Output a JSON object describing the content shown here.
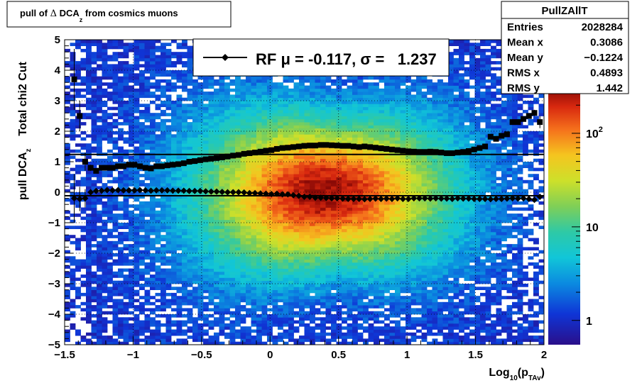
{
  "title": {
    "prefix": "pull of ",
    "delta": "Δ",
    "mid": " DCA",
    "sub": "z",
    "suffix": " from cosmics muons"
  },
  "axis_labels": {
    "x": {
      "pre": "Log",
      "sub1": "10",
      "mid": "(p",
      "sub2": "TAv",
      "post": ")"
    },
    "y": {
      "pre": "pull DCA",
      "sub": "z",
      "post": "    Total chi2 Cut"
    }
  },
  "stats_box": {
    "title": "PullZAllT",
    "rows": [
      {
        "label": "Entries",
        "value": "2028284"
      },
      {
        "label": "Mean x",
        "value": "0.3086"
      },
      {
        "label": "Mean y",
        "value": "−0.1224"
      },
      {
        "label": "RMS x",
        "value": "0.4893"
      },
      {
        "label": "RMS y",
        "value": "1.442"
      }
    ]
  },
  "legend": {
    "text": "RF μ = -0.117, σ =   1.237"
  },
  "colorbar": {
    "labels": [
      {
        "text": "1",
        "value": 1
      },
      {
        "text": "10",
        "value": 10
      },
      {
        "text": "10",
        "sup": "2",
        "value": 100
      }
    ],
    "min": 0.55,
    "max": 300
  },
  "chart_data": {
    "type": "heatmap",
    "xlim": [
      -1.5,
      2
    ],
    "ylim": [
      -5,
      5
    ],
    "x_ticks": [
      {
        "value": -1.5,
        "label": "−1.5"
      },
      {
        "value": -1,
        "label": "−1"
      },
      {
        "value": -0.5,
        "label": "−0.5"
      },
      {
        "value": 0,
        "label": "0"
      },
      {
        "value": 0.5,
        "label": "0.5"
      },
      {
        "value": 1,
        "label": "1"
      },
      {
        "value": 1.5,
        "label": "1.5"
      },
      {
        "value": 2,
        "label": "2"
      }
    ],
    "y_ticks": [
      {
        "value": 5,
        "label": "5"
      },
      {
        "value": 4,
        "label": "4"
      },
      {
        "value": 3,
        "label": "3"
      },
      {
        "value": 2,
        "label": "2"
      },
      {
        "value": 1,
        "label": "1"
      },
      {
        "value": 0,
        "label": "0"
      },
      {
        "value": -1,
        "label": "−1"
      },
      {
        "value": -2,
        "label": "−2"
      },
      {
        "value": -3,
        "label": "−3"
      },
      {
        "value": -4,
        "label": "−4"
      },
      {
        "value": -5,
        "label": "−5"
      }
    ],
    "grid": true,
    "z_scale": "log",
    "fit_lines": [
      {
        "y": 1.237,
        "x": [
          -1.5,
          2
        ]
      },
      {
        "y": -0.117,
        "x": [
          -1.5,
          2
        ]
      }
    ],
    "mean_series": {
      "marker": "diamond",
      "x": [
        -1.43,
        -1.39,
        -1.35,
        -1.31,
        -1.27,
        -1.23,
        -1.19,
        -1.15,
        -1.11,
        -1.07,
        -1.03,
        -0.99,
        -0.95,
        -0.91,
        -0.87,
        -0.83,
        -0.79,
        -0.75,
        -0.71,
        -0.67,
        -0.63,
        -0.59,
        -0.55,
        -0.51,
        -0.47,
        -0.43,
        -0.39,
        -0.35,
        -0.31,
        -0.27,
        -0.23,
        -0.19,
        -0.15,
        -0.11,
        -0.07,
        -0.03,
        0.01,
        0.05,
        0.09,
        0.13,
        0.17,
        0.21,
        0.25,
        0.29,
        0.33,
        0.37,
        0.41,
        0.45,
        0.49,
        0.53,
        0.57,
        0.61,
        0.65,
        0.69,
        0.73,
        0.77,
        0.81,
        0.85,
        0.89,
        0.93,
        0.97,
        1.01,
        1.05,
        1.09,
        1.13,
        1.17,
        1.21,
        1.25,
        1.29,
        1.33,
        1.37,
        1.41,
        1.45,
        1.49,
        1.53,
        1.57,
        1.61,
        1.65,
        1.69,
        1.73,
        1.77,
        1.81,
        1.85,
        1.89,
        1.93,
        1.97
      ],
      "y": [
        -0.2,
        -0.22,
        -0.2,
        0.0,
        0.04,
        0.05,
        0.07,
        0.06,
        0.07,
        0.06,
        0.06,
        0.06,
        0.07,
        0.06,
        0.05,
        0.06,
        0.06,
        0.06,
        0.05,
        0.05,
        0.05,
        0.04,
        0.04,
        0.04,
        0.03,
        0.02,
        0.02,
        0.01,
        0.0,
        0.0,
        0.0,
        -0.01,
        -0.03,
        -0.03,
        -0.04,
        -0.05,
        -0.06,
        -0.05,
        -0.07,
        -0.07,
        -0.1,
        -0.12,
        -0.15,
        -0.15,
        -0.18,
        -0.18,
        -0.19,
        -0.2,
        -0.2,
        -0.21,
        -0.22,
        -0.22,
        -0.22,
        -0.23,
        -0.22,
        -0.21,
        -0.22,
        -0.21,
        -0.22,
        -0.2,
        -0.22,
        -0.22,
        -0.2,
        -0.2,
        -0.2,
        -0.21,
        -0.2,
        -0.21,
        -0.21,
        -0.22,
        -0.2,
        -0.21,
        -0.21,
        -0.22,
        -0.22,
        -0.22,
        -0.23,
        -0.22,
        -0.22,
        -0.21,
        -0.2,
        -0.21,
        -0.2,
        -0.22,
        -0.25,
        -0.15
      ],
      "err": [
        0.8,
        0.4,
        0.3,
        0.1,
        0.05,
        0.04,
        0.04,
        0.03,
        0.03,
        0.03,
        0.03,
        0.03,
        0.03,
        0.03,
        0.03,
        0.03,
        0.03,
        0.03,
        0.03,
        0.03,
        0.03,
        0.03,
        0.03,
        0.03,
        0.03,
        0.03,
        0.03,
        0.03,
        0.03,
        0.03,
        0.03,
        0.03,
        0.03,
        0.03,
        0.03,
        0.03,
        0.03,
        0.03,
        0.03,
        0.03,
        0.03,
        0.03,
        0.03,
        0.03,
        0.03,
        0.03,
        0.03,
        0.03,
        0.03,
        0.03,
        0.03,
        0.03,
        0.03,
        0.03,
        0.03,
        0.03,
        0.03,
        0.03,
        0.03,
        0.03,
        0.03,
        0.03,
        0.03,
        0.03,
        0.03,
        0.03,
        0.03,
        0.03,
        0.03,
        0.03,
        0.03,
        0.03,
        0.03,
        0.03,
        0.03,
        0.03,
        0.03,
        0.03,
        0.03,
        0.03,
        0.03,
        0.03,
        0.04,
        0.05,
        0.06,
        0.1
      ]
    },
    "rms_series": {
      "marker": "square",
      "x": [
        -1.43,
        -1.39,
        -1.35,
        -1.31,
        -1.27,
        -1.23,
        -1.19,
        -1.15,
        -1.11,
        -1.07,
        -1.03,
        -0.99,
        -0.95,
        -0.91,
        -0.87,
        -0.83,
        -0.79,
        -0.75,
        -0.71,
        -0.67,
        -0.63,
        -0.59,
        -0.55,
        -0.51,
        -0.47,
        -0.43,
        -0.39,
        -0.35,
        -0.31,
        -0.27,
        -0.23,
        -0.19,
        -0.15,
        -0.11,
        -0.07,
        -0.03,
        0.01,
        0.05,
        0.09,
        0.13,
        0.17,
        0.21,
        0.25,
        0.29,
        0.33,
        0.37,
        0.41,
        0.45,
        0.49,
        0.53,
        0.57,
        0.61,
        0.65,
        0.69,
        0.73,
        0.77,
        0.81,
        0.85,
        0.89,
        0.93,
        0.97,
        1.01,
        1.05,
        1.09,
        1.13,
        1.17,
        1.21,
        1.25,
        1.29,
        1.33,
        1.37,
        1.41,
        1.45,
        1.49,
        1.53,
        1.57,
        1.61,
        1.65,
        1.69,
        1.73,
        1.77,
        1.81,
        1.85,
        1.89,
        1.93,
        1.97
      ],
      "y": [
        3.7,
        2.5,
        1.0,
        0.8,
        0.7,
        0.8,
        0.8,
        0.8,
        0.85,
        0.85,
        0.9,
        0.9,
        0.85,
        0.8,
        0.78,
        0.85,
        0.85,
        0.88,
        0.9,
        0.92,
        0.95,
        1.0,
        1.02,
        1.05,
        1.08,
        1.1,
        1.12,
        1.14,
        1.17,
        1.2,
        1.22,
        1.26,
        1.28,
        1.3,
        1.33,
        1.36,
        1.38,
        1.42,
        1.45,
        1.46,
        1.48,
        1.5,
        1.52,
        1.53,
        1.53,
        1.55,
        1.55,
        1.54,
        1.53,
        1.52,
        1.52,
        1.5,
        1.48,
        1.5,
        1.48,
        1.46,
        1.44,
        1.42,
        1.4,
        1.38,
        1.36,
        1.34,
        1.33,
        1.32,
        1.32,
        1.33,
        1.32,
        1.3,
        1.28,
        1.28,
        1.3,
        1.32,
        1.35,
        1.4,
        1.45,
        1.5,
        1.82,
        1.75,
        1.85,
        1.9,
        2.3,
        2.3,
        2.4,
        2.5,
        2.6,
        2.3
      ],
      "err": [
        1.0,
        0.5,
        0.3,
        0.1,
        0.05,
        0.04,
        0.04,
        0.03,
        0.03,
        0.03,
        0.03,
        0.03,
        0.03,
        0.03,
        0.03,
        0.03,
        0.03,
        0.03,
        0.03,
        0.03,
        0.03,
        0.03,
        0.03,
        0.03,
        0.03,
        0.03,
        0.03,
        0.03,
        0.03,
        0.03,
        0.03,
        0.03,
        0.03,
        0.03,
        0.03,
        0.03,
        0.03,
        0.03,
        0.03,
        0.03,
        0.03,
        0.03,
        0.03,
        0.03,
        0.03,
        0.03,
        0.03,
        0.03,
        0.03,
        0.03,
        0.03,
        0.03,
        0.03,
        0.03,
        0.03,
        0.03,
        0.03,
        0.03,
        0.03,
        0.03,
        0.03,
        0.03,
        0.03,
        0.03,
        0.03,
        0.03,
        0.03,
        0.03,
        0.03,
        0.03,
        0.03,
        0.03,
        0.03,
        0.03,
        0.03,
        0.03,
        0.03,
        0.03,
        0.03,
        0.03,
        0.03,
        0.03,
        0.05,
        0.08,
        0.1,
        0.2
      ]
    }
  }
}
